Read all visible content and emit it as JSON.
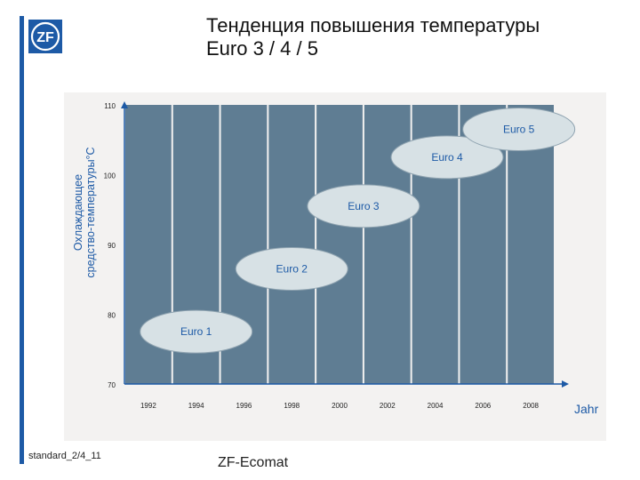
{
  "header": {
    "title_line1": "Тенденция повышения температуры",
    "title_line2": "Euro 3 / 4 / 5"
  },
  "logo": {
    "text": "ZF"
  },
  "footer": {
    "left": "standard_2/4_11",
    "center": "ZF-Ecomat"
  },
  "colors": {
    "brand_blue": "#1d5aa6",
    "column_fill": "#5f7d93",
    "bubble_fill": "#d7e1e5",
    "panel_bg": "#f3f2f1"
  },
  "chart_data": {
    "type": "bar",
    "title": "Тенденция повышения температуры Euro 3 / 4 / 5",
    "ylabel_line1": "Охлаждающее",
    "ylabel_line2": "средство-температуры°C",
    "xlabel": "Jahr",
    "categories": [
      "1992",
      "1994",
      "1996",
      "1998",
      "2000",
      "2002",
      "2004",
      "2006",
      "2008"
    ],
    "values": [
      110,
      110,
      110,
      110,
      110,
      110,
      110,
      110,
      110
    ],
    "ylim": [
      70,
      110
    ],
    "y_ticks": [
      {
        "value": 110,
        "label": "110"
      },
      {
        "value": 100,
        "label": "100"
      },
      {
        "value": 90,
        "label": "90"
      },
      {
        "value": 80,
        "label": "80"
      },
      {
        "value": 70,
        "label": "70"
      }
    ],
    "annotations": [
      {
        "label": "Euro 1",
        "x": 1994,
        "y": 77.5
      },
      {
        "label": "Euro 2",
        "x": 1998,
        "y": 86.5
      },
      {
        "label": "Euro 3",
        "x": 2001,
        "y": 95.5
      },
      {
        "label": "Euro 4",
        "x": 2004.5,
        "y": 102.5
      },
      {
        "label": "Euro 5",
        "x": 2007.5,
        "y": 106.5
      }
    ]
  }
}
